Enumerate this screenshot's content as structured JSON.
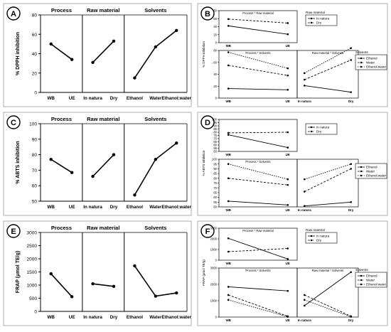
{
  "panels": [
    {
      "letter": "A",
      "ylabel": "% DPPH inhibition",
      "yticks": [
        0,
        20,
        40,
        60,
        80
      ],
      "ylim": [
        0,
        80
      ],
      "chart_data": {
        "type": "line",
        "groups": [
          {
            "title": "Process",
            "categories": [
              "WB",
              "UE"
            ],
            "values": [
              50,
              34
            ]
          },
          {
            "title": "Raw material",
            "categories": [
              "In natura",
              "Dry"
            ],
            "values": [
              31,
              53
            ]
          },
          {
            "title": "Solvents",
            "categories": [
              "Ethanol",
              "Water",
              "Ethanol:water"
            ],
            "values": [
              15,
              47,
              64
            ]
          }
        ]
      }
    },
    {
      "letter": "C",
      "ylabel": "% ABTS inhibition",
      "yticks": [
        50,
        60,
        70,
        80,
        90,
        100
      ],
      "ylim": [
        50,
        100
      ],
      "chart_data": {
        "type": "line",
        "groups": [
          {
            "title": "Process",
            "categories": [
              "WB",
              "UE"
            ],
            "values": [
              77,
              68.5
            ]
          },
          {
            "title": "Raw material",
            "categories": [
              "In natura",
              "Dry"
            ],
            "values": [
              66,
              80
            ]
          },
          {
            "title": "Solvents",
            "categories": [
              "Ethanol",
              "Water",
              "Ethanol:water"
            ],
            "values": [
              54,
              77,
              87.5
            ]
          }
        ]
      }
    },
    {
      "letter": "E",
      "ylabel": "FRAP (μmol TE/g)",
      "yticks": [
        0,
        500,
        1000,
        1500,
        2000,
        2500,
        3000
      ],
      "ylim": [
        0,
        3000
      ],
      "chart_data": {
        "type": "line",
        "groups": [
          {
            "title": "Process",
            "categories": [
              "WB",
              "UE"
            ],
            "values": [
              1430,
              560
            ]
          },
          {
            "title": "Raw material",
            "categories": [
              "In natura",
              "Dry"
            ],
            "values": [
              1050,
              950
            ]
          },
          {
            "title": "Solvents",
            "categories": [
              "Ethanol",
              "Water",
              "Ethanol:water"
            ],
            "values": [
              1730,
              580,
              700
            ]
          }
        ]
      }
    }
  ],
  "interaction_panels": [
    {
      "letter": "B",
      "ylabel": "% DPPH inhibition",
      "top": {
        "title": "Process * Raw material",
        "ylim": [
          0,
          80
        ],
        "yticks": [
          0,
          20,
          40,
          60,
          80
        ],
        "categories": [
          "WB",
          "UE"
        ],
        "legend_title": "Raw material",
        "series": [
          {
            "name": "In natura",
            "values": [
              42,
              21
            ]
          },
          {
            "name": "Dry",
            "values": [
              59,
              49
            ]
          }
        ]
      },
      "bottom_left": {
        "title": "Process * Solvents",
        "ylim": [
          0,
          80
        ],
        "yticks": [
          0,
          20,
          40,
          60,
          80
        ],
        "categories": [
          "WB",
          "UE"
        ],
        "series": [
          {
            "name": "Ethanol",
            "values": [
              16,
              14
            ]
          },
          {
            "name": "Water",
            "values": [
              55,
              38
            ]
          },
          {
            "name": "Ethanol:water",
            "values": [
              77,
              50
            ]
          }
        ]
      },
      "bottom_right": {
        "title": "Raw material * Solvents",
        "categories": [
          "In natura",
          "Dry"
        ],
        "legend_title": "Solvents",
        "series": [
          {
            "name": "Ethanol",
            "values": [
              21,
              10
            ]
          },
          {
            "name": "Water",
            "values": [
              31,
              64
            ]
          },
          {
            "name": "Ethanol:water",
            "values": [
              42,
              84
            ]
          }
        ]
      }
    },
    {
      "letter": "D",
      "ylabel": "% ABTS inhibition",
      "top": {
        "title": "",
        "ylim": [
          50,
          100
        ],
        "yticks": [
          50,
          55,
          60,
          65,
          70,
          75,
          80,
          85,
          90,
          95,
          100
        ],
        "categories": [
          "WB",
          "UE"
        ],
        "legend_title": "",
        "series": [
          {
            "name": "In natura",
            "values": [
              76,
              56
            ]
          },
          {
            "name": "Dry",
            "values": [
              79,
              80
            ]
          }
        ]
      },
      "bottom_left": {
        "title": "Process * Solvents",
        "ylim": [
          50,
          100
        ],
        "yticks": [
          50,
          55,
          60,
          65,
          70,
          75,
          80,
          85,
          90,
          95,
          100
        ],
        "categories": [
          "WB",
          "UE"
        ],
        "series": [
          {
            "name": "Ethanol",
            "values": [
              56,
              52
            ]
          },
          {
            "name": "Water",
            "values": [
              80,
              73
            ]
          },
          {
            "name": "Ethanol:water",
            "values": [
              95,
              79
            ]
          }
        ]
      },
      "bottom_right": {
        "title": "",
        "categories": [
          "In natura",
          "Dry"
        ],
        "legend_title": "",
        "series": [
          {
            "name": "Ethanol",
            "values": [
              51,
              55
            ]
          },
          {
            "name": "Water",
            "values": [
              66,
              90
            ]
          },
          {
            "name": "Ethanol:water",
            "values": [
              79,
              95
            ]
          }
        ]
      }
    },
    {
      "letter": "F",
      "ylabel": "FRAP (μmol TE/g)",
      "top": {
        "title": "Process * Raw material",
        "ylim": [
          0,
          3000
        ],
        "yticks": [
          0,
          1000,
          2000,
          3000
        ],
        "categories": [
          "WB",
          "UE"
        ],
        "legend_title": "Raw material",
        "series": [
          {
            "name": "In natura",
            "values": [
              2050,
              110
            ]
          },
          {
            "name": "Dry",
            "values": [
              800,
              1100
            ]
          }
        ]
      },
      "bottom_left": {
        "title": "Process * Solvents",
        "ylim": [
          0,
          3000
        ],
        "yticks": [
          0,
          1000,
          2000,
          3000
        ],
        "categories": [
          "WB",
          "UE"
        ],
        "series": [
          {
            "name": "Ethanol",
            "values": [
              1850,
              1600
            ]
          },
          {
            "name": "Water",
            "values": [
              1350,
              50
            ]
          },
          {
            "name": "Ethanol:water",
            "values": [
              1050,
              20
            ]
          }
        ]
      },
      "bottom_right": {
        "title": "Raw material * Solvents",
        "categories": [
          "In natura",
          "Dry"
        ],
        "legend_title": "Solvents",
        "series": [
          {
            "name": "Ethanol",
            "values": [
              700,
              2750
            ]
          },
          {
            "name": "Water",
            "values": [
              1350,
              50
            ]
          },
          {
            "name": "Ethanol:water",
            "values": [
              1050,
              20
            ]
          }
        ]
      }
    }
  ]
}
